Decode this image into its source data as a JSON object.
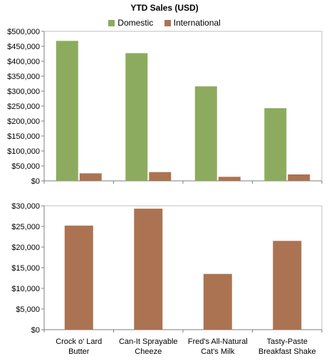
{
  "chart_data": [
    {
      "type": "bar",
      "title": "YTD Sales (USD)",
      "categories": [
        "Crock o' Lard\nButter",
        "Can-It  Sprayable\nCheeze",
        "Fred's All-Natural\nCat's Milk",
        "Tasty-Paste\nBreakfast Shake"
      ],
      "series": [
        {
          "name": "Domestic",
          "values": [
            468000,
            427000,
            316000,
            243000
          ],
          "color": "#8DAB5E"
        },
        {
          "name": "International",
          "values": [
            25200,
            29300,
            13500,
            21500
          ],
          "color": "#AB7352"
        }
      ],
      "ylim": [
        0,
        500000
      ],
      "yticks": [
        "$0",
        "$50,000",
        "$100,000",
        "$150,000",
        "$200,000",
        "$250,000",
        "$300,000",
        "$350,000",
        "$400,000",
        "$450,000",
        "$500,000"
      ],
      "legend": "top"
    },
    {
      "type": "bar",
      "categories": [
        "Crock o' Lard\nButter",
        "Can-It  Sprayable\nCheeze",
        "Fred's All-Natural\nCat's Milk",
        "Tasty-Paste\nBreakfast Shake"
      ],
      "series": [
        {
          "values": [
            25200,
            29300,
            13500,
            21500
          ],
          "color": "#AB7352"
        }
      ],
      "ylim": [
        0,
        30000
      ],
      "yticks": [
        "$0",
        "$5,000",
        "$10,000",
        "$15,000",
        "$20,000",
        "$25,000",
        "$30,000"
      ]
    }
  ]
}
